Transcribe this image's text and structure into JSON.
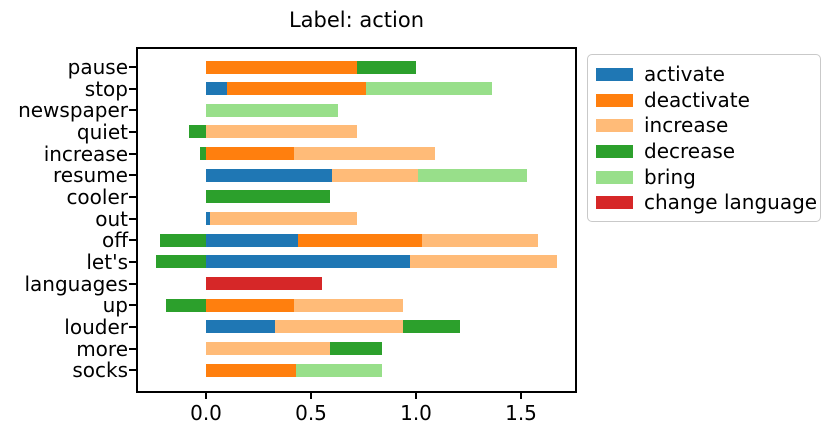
{
  "chart_data": {
    "type": "bar",
    "subtype": "horizontal-stacked",
    "title": "Label: action",
    "categories": [
      "pause",
      "stop",
      "newspaper",
      "quiet",
      "increase",
      "resume",
      "cooler",
      "out",
      "off",
      "let's",
      "languages",
      "up",
      "louder",
      "more",
      "socks"
    ],
    "series": [
      {
        "name": "activate",
        "color": "#1f77b4",
        "values": [
          0,
          0.1,
          0,
          0,
          0,
          0.6,
          0,
          0.02,
          0.44,
          0.97,
          0,
          0,
          0.33,
          0,
          0
        ]
      },
      {
        "name": "deactivate",
        "color": "#ff7f0e",
        "values": [
          0.72,
          0.66,
          0,
          0,
          0.42,
          0,
          0,
          0,
          0.59,
          0,
          0,
          0.42,
          0,
          0,
          0.43
        ]
      },
      {
        "name": "increase",
        "color": "#ffbb78",
        "values": [
          0,
          0,
          0,
          0.72,
          0.67,
          0.41,
          0,
          0.7,
          0.55,
          0.7,
          0,
          0.52,
          0.61,
          0.59,
          0
        ]
      },
      {
        "name": "decrease",
        "color": "#2ca02c",
        "values": [
          0.28,
          0,
          0,
          -0.08,
          -0.03,
          0,
          0.59,
          0,
          -0.22,
          -0.24,
          0,
          -0.19,
          0.27,
          0.25,
          0
        ]
      },
      {
        "name": "bring",
        "color": "#98df8a",
        "values": [
          0,
          0.6,
          0.63,
          0,
          0,
          0.52,
          0,
          0,
          0,
          0,
          0,
          0,
          0,
          0,
          0.41
        ]
      },
      {
        "name": "change language",
        "color": "#d62728",
        "values": [
          0,
          0,
          0,
          0,
          0,
          0,
          0,
          0,
          0,
          0,
          0.55,
          0,
          0,
          0,
          0
        ]
      }
    ],
    "xlabel": "",
    "ylabel": "",
    "xtick_labels": [
      "0.0",
      "0.5",
      "1.0",
      "1.5"
    ],
    "xtick_values": [
      0,
      0.5,
      1.0,
      1.5
    ],
    "xlim": [
      -0.33,
      1.77
    ],
    "grid": false,
    "legend_position": "outside-upper-right"
  }
}
